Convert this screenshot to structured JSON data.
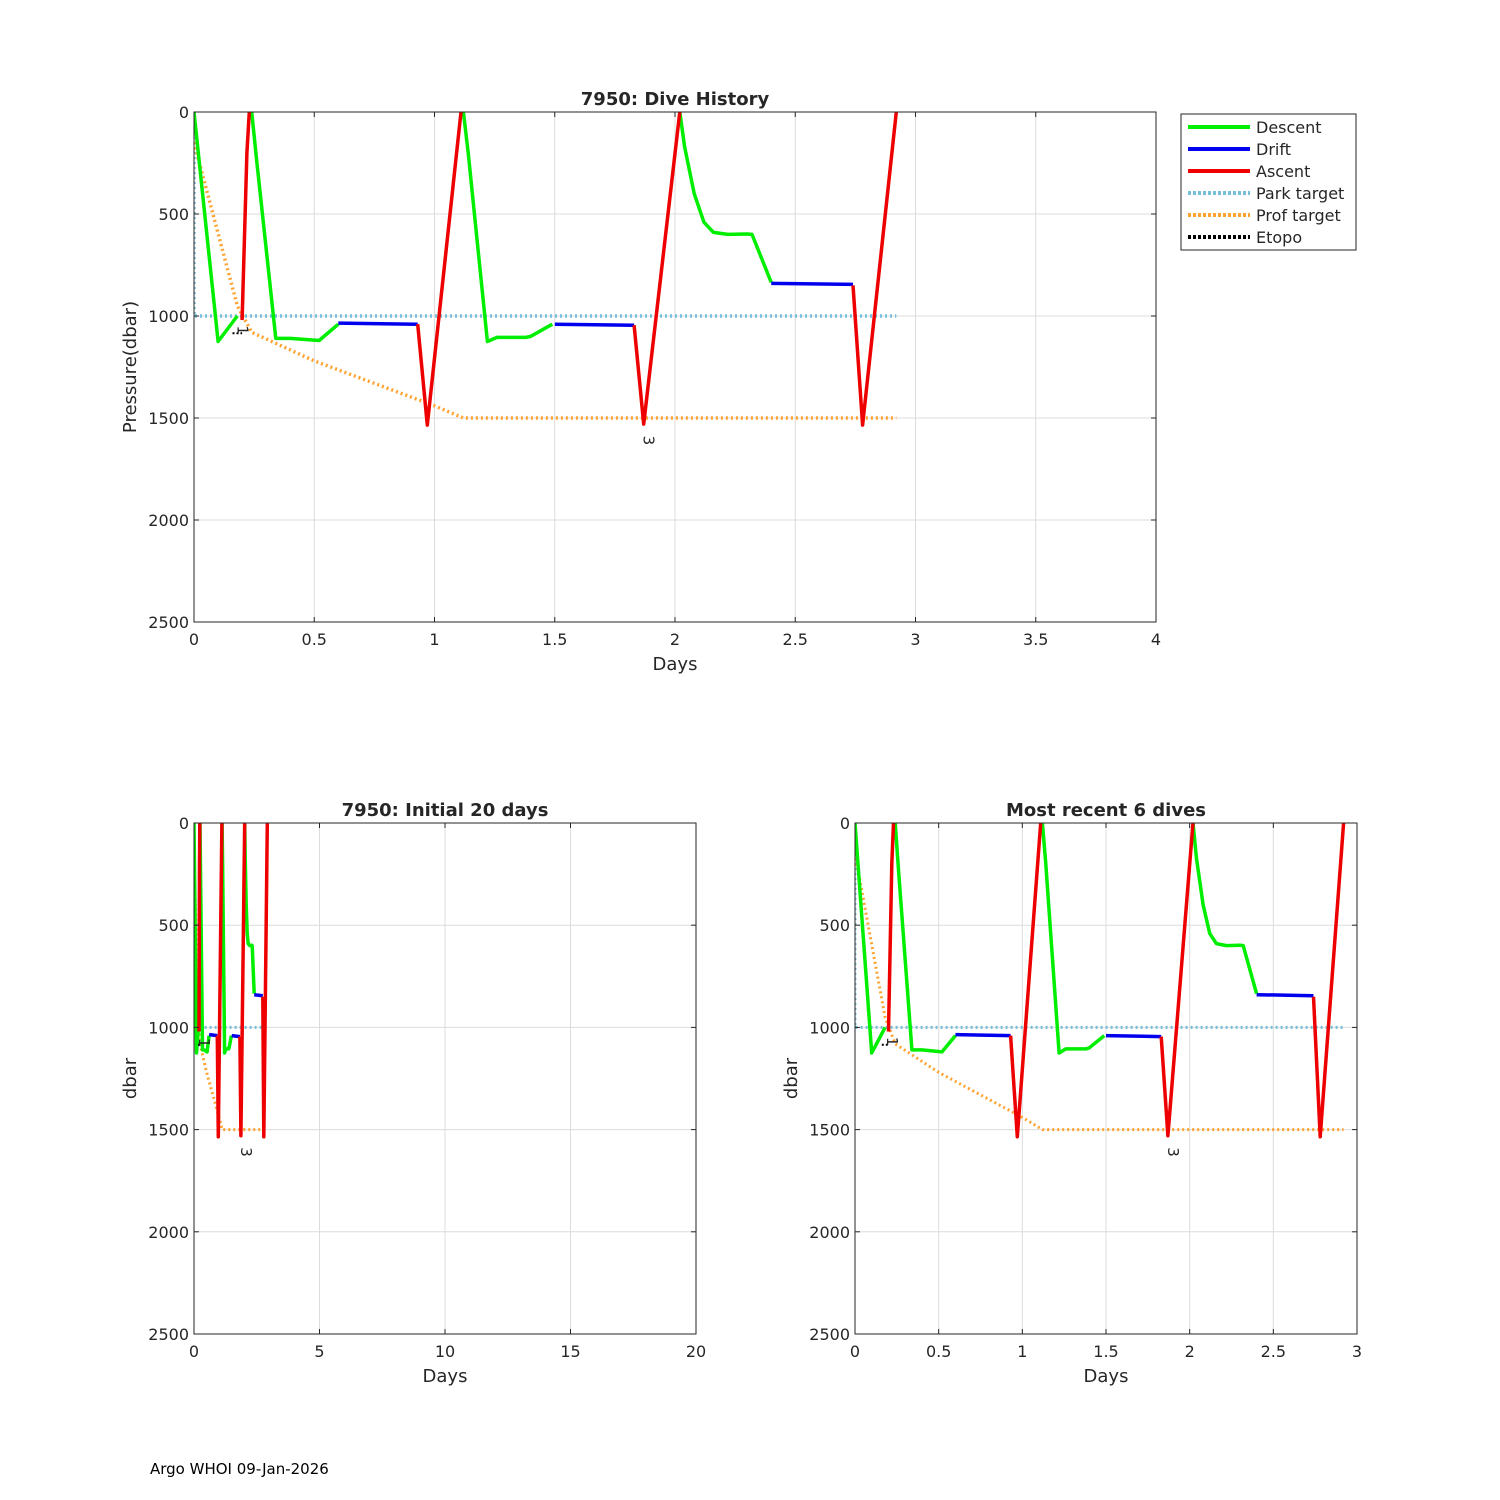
{
  "footer": "Argo WHOI 09-Jan-2026",
  "colors": {
    "descent": "#00ee00",
    "drift": "#0000ee",
    "ascent": "#ee0000",
    "park": "#76bfd8",
    "prof": "#ffa22f",
    "etopo": "#000000",
    "grid": "#dcdcdc",
    "axis": "#262626"
  },
  "legend": [
    {
      "label": "Descent",
      "key": "descent",
      "style": "solid"
    },
    {
      "label": "Drift",
      "key": "drift",
      "style": "solid"
    },
    {
      "label": "Ascent",
      "key": "ascent",
      "style": "solid"
    },
    {
      "label": "Park target",
      "key": "park",
      "style": "dotted"
    },
    {
      "label": "Prof target",
      "key": "prof",
      "style": "dotted"
    },
    {
      "label": "Etopo",
      "key": "etopo",
      "style": "dotted"
    }
  ],
  "chart_data": [
    {
      "id": "main",
      "type": "line",
      "title": "7950: Dive History",
      "xlabel": "Days",
      "ylabel": "Pressure(dbar)",
      "xlim": [
        0,
        4
      ],
      "ylim": [
        0,
        2500
      ],
      "y_reversed": true,
      "grid": true,
      "legend_position": "outside-right",
      "xticks": [
        0,
        0.5,
        1,
        1.5,
        2,
        2.5,
        3,
        3.5,
        4
      ],
      "xticklabels": [
        "0",
        "0.5",
        "1",
        "1.5",
        "2",
        "2.5",
        "3",
        "3.5",
        "4"
      ],
      "yticks": [
        0,
        500,
        1000,
        1500,
        2000,
        2500
      ],
      "yticklabels": [
        "0",
        "500",
        "1000",
        "1500",
        "2000",
        "2500"
      ],
      "annotations": [
        {
          "text": "1",
          "x": 0.18,
          "y": 1070
        },
        {
          "text": "3",
          "x": 1.87,
          "y": 1610
        }
      ]
    },
    {
      "id": "initial",
      "type": "line",
      "title": "7950: Initial 20 days",
      "xlabel": "Days",
      "ylabel": "dbar",
      "xlim": [
        0,
        20
      ],
      "ylim": [
        0,
        2500
      ],
      "y_reversed": true,
      "grid": true,
      "xticks": [
        0,
        5,
        10,
        15,
        20
      ],
      "xticklabels": [
        "0",
        "5",
        "10",
        "15",
        "20"
      ],
      "yticks": [
        0,
        500,
        1000,
        1500,
        2000,
        2500
      ],
      "yticklabels": [
        "0",
        "500",
        "1000",
        "1500",
        "2000",
        "2500"
      ],
      "annotations": [
        {
          "text": "1",
          "x": 0.2,
          "y": 1075
        },
        {
          "text": "3",
          "x": 1.87,
          "y": 1610
        }
      ]
    },
    {
      "id": "recent",
      "type": "line",
      "title": "Most recent 6 dives",
      "xlabel": "Days",
      "ylabel": "dbar",
      "xlim": [
        0,
        3
      ],
      "ylim": [
        0,
        2500
      ],
      "y_reversed": true,
      "grid": true,
      "xticks": [
        0,
        0.5,
        1,
        1.5,
        2,
        2.5,
        3
      ],
      "xticklabels": [
        "0",
        "0.5",
        "1",
        "1.5",
        "2",
        "2.5",
        "3"
      ],
      "yticks": [
        0,
        500,
        1000,
        1500,
        2000,
        2500
      ],
      "yticklabels": [
        "0",
        "500",
        "1000",
        "1500",
        "2000",
        "2500"
      ],
      "annotations": [
        {
          "text": "1",
          "x": 0.19,
          "y": 1070
        },
        {
          "text": "3",
          "x": 1.87,
          "y": 1610
        }
      ]
    }
  ],
  "series": {
    "descent": [
      [
        [
          0,
          0
        ],
        [
          0.1,
          1125
        ],
        [
          0.18,
          1000
        ]
      ],
      [
        [
          0.24,
          0
        ],
        [
          0.26,
          230
        ],
        [
          0.34,
          1110
        ],
        [
          0.4,
          1110
        ],
        [
          0.52,
          1120
        ],
        [
          0.6,
          1040
        ]
      ],
      [
        [
          1.12,
          0
        ],
        [
          1.14,
          200
        ],
        [
          1.22,
          1125
        ],
        [
          1.26,
          1105
        ],
        [
          1.38,
          1105
        ],
        [
          1.4,
          1100
        ],
        [
          1.49,
          1040
        ]
      ],
      [
        [
          2.02,
          0
        ],
        [
          2.04,
          170
        ],
        [
          2.08,
          400
        ],
        [
          2.12,
          540
        ],
        [
          2.16,
          590
        ],
        [
          2.22,
          600
        ],
        [
          2.3,
          598
        ],
        [
          2.32,
          600
        ],
        [
          2.4,
          835
        ]
      ]
    ],
    "drift": [
      [
        [
          0.6,
          1035
        ],
        [
          0.93,
          1040
        ]
      ],
      [
        [
          1.5,
          1040
        ],
        [
          1.83,
          1045
        ]
      ],
      [
        [
          2.4,
          840
        ],
        [
          2.74,
          845
        ]
      ]
    ],
    "ascent": [
      [
        [
          0.2,
          1020
        ],
        [
          0.22,
          200
        ],
        [
          0.23,
          0
        ]
      ],
      [
        [
          0.93,
          1040
        ],
        [
          0.97,
          1535
        ],
        [
          1.11,
          0
        ]
      ],
      [
        [
          1.83,
          1045
        ],
        [
          1.87,
          1530
        ],
        [
          2.02,
          0
        ]
      ],
      [
        [
          2.74,
          850
        ],
        [
          2.78,
          1535
        ],
        [
          2.92,
          0
        ]
      ]
    ],
    "park": [
      [
        0,
        0
      ],
      [
        0,
        1000
      ],
      [
        2.92,
        1000
      ]
    ],
    "prof": [
      [
        0,
        150
      ],
      [
        0.18,
        950
      ],
      [
        0.24,
        1080
      ],
      [
        0.5,
        1220
      ],
      [
        1.0,
        1440
      ],
      [
        1.12,
        1500
      ],
      [
        2.92,
        1500
      ]
    ],
    "etopo": [
      [
        0.16,
        1085
      ],
      [
        0.2,
        1085
      ]
    ]
  }
}
